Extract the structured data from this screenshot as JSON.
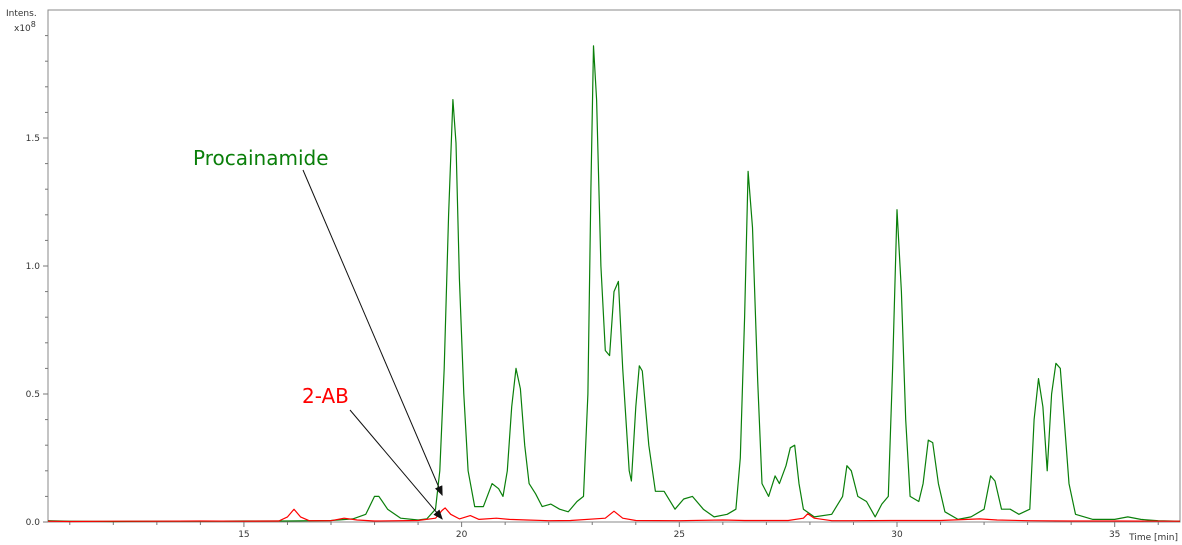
{
  "chart_data": {
    "type": "line",
    "title": "",
    "xlabel": "Time [min]",
    "ylabel": "Intens.",
    "y_multiplier": "x10",
    "y_multiplier_exponent": "8",
    "xlim": [
      10.5,
      36.5
    ],
    "ylim": [
      0,
      2.0
    ],
    "x_ticks": [
      15,
      20,
      25,
      30,
      35
    ],
    "y_ticks": [
      0.0,
      0.5,
      1.0,
      1.5
    ],
    "x_tick_labels": [
      "15",
      "20",
      "25",
      "30",
      "35"
    ],
    "y_tick_labels": [
      "0.0",
      "0.5",
      "1.0",
      "1.5"
    ],
    "grid": false,
    "series": [
      {
        "name": "Procainamide",
        "color": "#0a7f0a",
        "points": [
          [
            10.5,
            0.005
          ],
          [
            11,
            0.003
          ],
          [
            12,
            0.002
          ],
          [
            13,
            0.003
          ],
          [
            14,
            0.003
          ],
          [
            15,
            0.004
          ],
          [
            16,
            0.004
          ],
          [
            17,
            0.006
          ],
          [
            17.5,
            0.012
          ],
          [
            17.8,
            0.03
          ],
          [
            18.0,
            0.1
          ],
          [
            18.1,
            0.1
          ],
          [
            18.3,
            0.05
          ],
          [
            18.6,
            0.015
          ],
          [
            19.0,
            0.008
          ],
          [
            19.2,
            0.012
          ],
          [
            19.4,
            0.05
          ],
          [
            19.5,
            0.2
          ],
          [
            19.6,
            0.6
          ],
          [
            19.7,
            1.2
          ],
          [
            19.8,
            1.65
          ],
          [
            19.87,
            1.48
          ],
          [
            19.95,
            0.95
          ],
          [
            20.05,
            0.5
          ],
          [
            20.15,
            0.2
          ],
          [
            20.3,
            0.06
          ],
          [
            20.5,
            0.06
          ],
          [
            20.7,
            0.15
          ],
          [
            20.85,
            0.13
          ],
          [
            20.95,
            0.1
          ],
          [
            21.05,
            0.2
          ],
          [
            21.15,
            0.45
          ],
          [
            21.25,
            0.6
          ],
          [
            21.35,
            0.52
          ],
          [
            21.45,
            0.3
          ],
          [
            21.55,
            0.15
          ],
          [
            21.7,
            0.11
          ],
          [
            21.85,
            0.06
          ],
          [
            22.05,
            0.07
          ],
          [
            22.25,
            0.05
          ],
          [
            22.45,
            0.04
          ],
          [
            22.65,
            0.08
          ],
          [
            22.8,
            0.1
          ],
          [
            22.9,
            0.5
          ],
          [
            22.97,
            1.3
          ],
          [
            23.03,
            1.86
          ],
          [
            23.1,
            1.65
          ],
          [
            23.2,
            1.0
          ],
          [
            23.3,
            0.67
          ],
          [
            23.4,
            0.65
          ],
          [
            23.5,
            0.9
          ],
          [
            23.6,
            0.94
          ],
          [
            23.7,
            0.6
          ],
          [
            23.85,
            0.2
          ],
          [
            23.9,
            0.16
          ],
          [
            24.0,
            0.45
          ],
          [
            24.08,
            0.61
          ],
          [
            24.15,
            0.59
          ],
          [
            24.3,
            0.3
          ],
          [
            24.45,
            0.12
          ],
          [
            24.65,
            0.12
          ],
          [
            24.9,
            0.05
          ],
          [
            25.1,
            0.09
          ],
          [
            25.3,
            0.1
          ],
          [
            25.55,
            0.05
          ],
          [
            25.8,
            0.02
          ],
          [
            26.1,
            0.03
          ],
          [
            26.3,
            0.05
          ],
          [
            26.4,
            0.25
          ],
          [
            26.5,
            0.8
          ],
          [
            26.58,
            1.37
          ],
          [
            26.68,
            1.15
          ],
          [
            26.8,
            0.55
          ],
          [
            26.9,
            0.15
          ],
          [
            27.05,
            0.1
          ],
          [
            27.2,
            0.18
          ],
          [
            27.3,
            0.15
          ],
          [
            27.45,
            0.22
          ],
          [
            27.55,
            0.29
          ],
          [
            27.65,
            0.3
          ],
          [
            27.75,
            0.15
          ],
          [
            27.85,
            0.05
          ],
          [
            28.1,
            0.02
          ],
          [
            28.5,
            0.03
          ],
          [
            28.75,
            0.1
          ],
          [
            28.85,
            0.22
          ],
          [
            28.95,
            0.2
          ],
          [
            29.1,
            0.1
          ],
          [
            29.3,
            0.08
          ],
          [
            29.5,
            0.02
          ],
          [
            29.65,
            0.07
          ],
          [
            29.8,
            0.1
          ],
          [
            29.9,
            0.6
          ],
          [
            30.0,
            1.22
          ],
          [
            30.1,
            0.9
          ],
          [
            30.2,
            0.4
          ],
          [
            30.3,
            0.1
          ],
          [
            30.5,
            0.08
          ],
          [
            30.6,
            0.15
          ],
          [
            30.72,
            0.32
          ],
          [
            30.82,
            0.31
          ],
          [
            30.95,
            0.15
          ],
          [
            31.1,
            0.04
          ],
          [
            31.4,
            0.01
          ],
          [
            31.7,
            0.02
          ],
          [
            32.0,
            0.05
          ],
          [
            32.15,
            0.18
          ],
          [
            32.25,
            0.16
          ],
          [
            32.4,
            0.05
          ],
          [
            32.6,
            0.05
          ],
          [
            32.8,
            0.03
          ],
          [
            33.05,
            0.05
          ],
          [
            33.15,
            0.4
          ],
          [
            33.25,
            0.56
          ],
          [
            33.35,
            0.45
          ],
          [
            33.45,
            0.2
          ],
          [
            33.55,
            0.5
          ],
          [
            33.65,
            0.62
          ],
          [
            33.75,
            0.6
          ],
          [
            33.85,
            0.38
          ],
          [
            33.95,
            0.15
          ],
          [
            34.1,
            0.03
          ],
          [
            34.5,
            0.01
          ],
          [
            35.0,
            0.01
          ],
          [
            35.3,
            0.02
          ],
          [
            35.6,
            0.01
          ],
          [
            36.0,
            0.005
          ],
          [
            36.5,
            0.003
          ]
        ]
      },
      {
        "name": "2-AB",
        "color": "#ff0000",
        "points": [
          [
            10.5,
            0.003
          ],
          [
            11,
            0.002
          ],
          [
            12,
            0.003
          ],
          [
            13,
            0.003
          ],
          [
            14,
            0.004
          ],
          [
            15,
            0.003
          ],
          [
            15.8,
            0.004
          ],
          [
            16.0,
            0.02
          ],
          [
            16.15,
            0.05
          ],
          [
            16.3,
            0.02
          ],
          [
            16.5,
            0.005
          ],
          [
            17.0,
            0.005
          ],
          [
            17.3,
            0.015
          ],
          [
            17.6,
            0.008
          ],
          [
            18.0,
            0.004
          ],
          [
            19.0,
            0.006
          ],
          [
            19.4,
            0.015
          ],
          [
            19.55,
            0.045
          ],
          [
            19.62,
            0.055
          ],
          [
            19.75,
            0.03
          ],
          [
            19.95,
            0.012
          ],
          [
            20.2,
            0.025
          ],
          [
            20.4,
            0.01
          ],
          [
            20.8,
            0.015
          ],
          [
            21.1,
            0.01
          ],
          [
            21.5,
            0.008
          ],
          [
            22.0,
            0.005
          ],
          [
            22.5,
            0.006
          ],
          [
            23.3,
            0.015
          ],
          [
            23.5,
            0.042
          ],
          [
            23.7,
            0.015
          ],
          [
            24.0,
            0.006
          ],
          [
            25.0,
            0.005
          ],
          [
            26.0,
            0.008
          ],
          [
            26.5,
            0.006
          ],
          [
            27.0,
            0.006
          ],
          [
            27.5,
            0.006
          ],
          [
            27.85,
            0.015
          ],
          [
            27.95,
            0.032
          ],
          [
            28.1,
            0.015
          ],
          [
            28.5,
            0.005
          ],
          [
            29.0,
            0.005
          ],
          [
            30.0,
            0.006
          ],
          [
            31.0,
            0.006
          ],
          [
            31.9,
            0.012
          ],
          [
            32.3,
            0.008
          ],
          [
            33.0,
            0.005
          ],
          [
            34.0,
            0.004
          ],
          [
            35.0,
            0.004
          ],
          [
            36.5,
            0.003
          ]
        ]
      }
    ],
    "annotations": [
      {
        "text": "Procainamide",
        "color": "#0a7f0a",
        "target": [
          19.6,
          0.105
        ]
      },
      {
        "text": "2-AB",
        "color": "#ff0000",
        "target": [
          19.6,
          0.012
        ]
      }
    ]
  }
}
